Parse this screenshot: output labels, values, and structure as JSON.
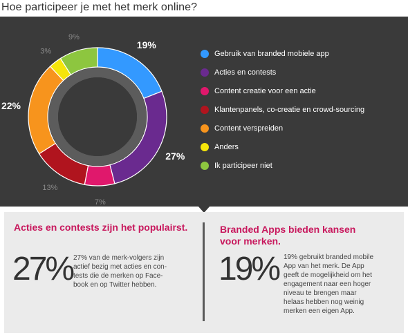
{
  "title": "Hoe participeer je met het merk online?",
  "chart_data": {
    "type": "pie",
    "donut": true,
    "title": "",
    "legend_position": "right",
    "slices": [
      {
        "label": "Gebruik van branded mobiele app",
        "value": 19,
        "display": "19%",
        "color": "#3399ff",
        "emphasis": "bold"
      },
      {
        "label": "Acties en contests",
        "value": 27,
        "display": "27%",
        "color": "#6a2a8f",
        "emphasis": "bold"
      },
      {
        "label": "Content creatie voor een actie",
        "value": 7,
        "display": "7%",
        "color": "#e0186c",
        "emphasis": "normal"
      },
      {
        "label": "Klantenpanels, co-creatie en crowd-sourcing",
        "value": 13,
        "display": "13%",
        "color": "#b0141e",
        "emphasis": "normal"
      },
      {
        "label": "Content verspreiden",
        "value": 22,
        "display": "22%",
        "color": "#f7941d",
        "emphasis": "bold"
      },
      {
        "label": "Anders",
        "value": 3,
        "display": "3%",
        "color": "#f5e50a",
        "emphasis": "normal"
      },
      {
        "label": "Ik participeer niet",
        "value": 9,
        "display": "9%",
        "color": "#8dc63f",
        "emphasis": "normal"
      }
    ]
  },
  "colors": {
    "panel": "#3a3a3a",
    "accent": "#c8185d",
    "bottom_panel": "#ebebeb"
  },
  "boxes": [
    {
      "title_lines": [
        "Acties en contests zijn het populairst."
      ],
      "big": "27%",
      "text_lines": [
        "27% van de merk-volgers zijn",
        "actief bezig met acties en con-",
        "tests die de merken op Face-",
        "book en op Twitter hebben."
      ]
    },
    {
      "title_lines": [
        "Branded Apps bieden kansen",
        "voor merken."
      ],
      "big": "19%",
      "text_lines": [
        "19% gebruikt branded mobile",
        "App van het merk. De App",
        "geeft de mogelijkheid om het",
        "engagement naar een hoger",
        "niveau te brengen maar",
        "helaas hebben nog weinig",
        "merken een eigen App."
      ]
    }
  ]
}
